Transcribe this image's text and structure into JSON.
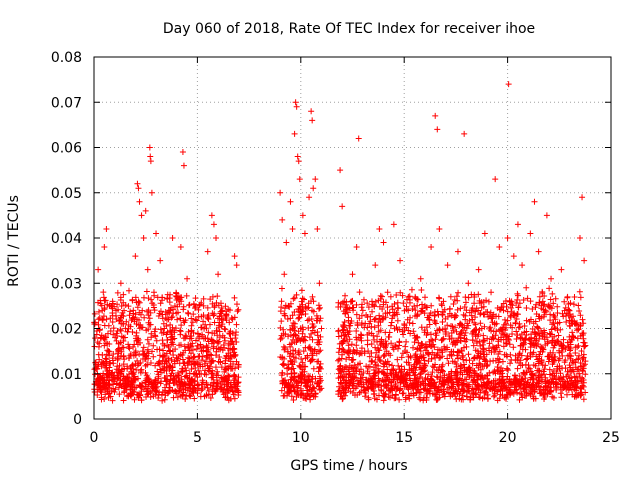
{
  "chart_data": {
    "type": "scatter",
    "title": "Day 060 of 2018, Rate Of TEC Index for receiver ihoe",
    "xlabel": "GPS time / hours",
    "ylabel": "ROTI / TECUs",
    "xlim": [
      0,
      25
    ],
    "ylim": [
      0,
      0.08
    ],
    "x_ticks": [
      "0",
      "5",
      "10",
      "15",
      "20",
      "25"
    ],
    "y_ticks": [
      "0",
      "0.01",
      "0.02",
      "0.03",
      "0.04",
      "0.05",
      "0.06",
      "0.07",
      "0.08"
    ],
    "grid": true,
    "marker": "+",
    "marker_color": "#ff0000",
    "series": [
      {
        "name": "ROTI",
        "points": [
          [
            0.1,
            0.012
          ],
          [
            0.2,
            0.033
          ],
          [
            0.3,
            0.008
          ],
          [
            0.4,
            0.022
          ],
          [
            0.5,
            0.038
          ],
          [
            0.6,
            0.042
          ],
          [
            0.7,
            0.015
          ],
          [
            0.9,
            0.026
          ],
          [
            1.1,
            0.011
          ],
          [
            1.3,
            0.03
          ],
          [
            1.5,
            0.018
          ],
          [
            1.7,
            0.009
          ],
          [
            1.9,
            0.024
          ],
          [
            2.0,
            0.036
          ],
          [
            2.1,
            0.052
          ],
          [
            2.15,
            0.051
          ],
          [
            2.2,
            0.048
          ],
          [
            2.3,
            0.045
          ],
          [
            2.4,
            0.04
          ],
          [
            2.5,
            0.046
          ],
          [
            2.6,
            0.033
          ],
          [
            2.7,
            0.06
          ],
          [
            2.72,
            0.058
          ],
          [
            2.75,
            0.057
          ],
          [
            2.8,
            0.05
          ],
          [
            2.9,
            0.028
          ],
          [
            3.0,
            0.041
          ],
          [
            3.2,
            0.035
          ],
          [
            3.4,
            0.02
          ],
          [
            3.6,
            0.013
          ],
          [
            3.8,
            0.04
          ],
          [
            4.0,
            0.027
          ],
          [
            4.2,
            0.038
          ],
          [
            4.3,
            0.059
          ],
          [
            4.35,
            0.056
          ],
          [
            4.5,
            0.031
          ],
          [
            4.7,
            0.016
          ],
          [
            4.9,
            0.022
          ],
          [
            5.1,
            0.01
          ],
          [
            5.3,
            0.025
          ],
          [
            5.5,
            0.037
          ],
          [
            5.7,
            0.045
          ],
          [
            5.8,
            0.043
          ],
          [
            5.9,
            0.04
          ],
          [
            6.0,
            0.032
          ],
          [
            6.2,
            0.024
          ],
          [
            6.4,
            0.014
          ],
          [
            6.6,
            0.019
          ],
          [
            6.8,
            0.036
          ],
          [
            6.9,
            0.034
          ],
          [
            7.0,
            0.012
          ],
          [
            9.0,
            0.05
          ],
          [
            9.1,
            0.044
          ],
          [
            9.2,
            0.032
          ],
          [
            9.3,
            0.039
          ],
          [
            9.4,
            0.025
          ],
          [
            9.5,
            0.048
          ],
          [
            9.6,
            0.042
          ],
          [
            9.7,
            0.063
          ],
          [
            9.75,
            0.07
          ],
          [
            9.8,
            0.069
          ],
          [
            9.85,
            0.058
          ],
          [
            9.9,
            0.057
          ],
          [
            9.95,
            0.053
          ],
          [
            10.1,
            0.045
          ],
          [
            10.2,
            0.041
          ],
          [
            10.4,
            0.049
          ],
          [
            10.5,
            0.068
          ],
          [
            10.55,
            0.066
          ],
          [
            10.6,
            0.051
          ],
          [
            10.7,
            0.053
          ],
          [
            10.8,
            0.042
          ],
          [
            10.9,
            0.03
          ],
          [
            11.0,
            0.02
          ],
          [
            11.9,
            0.055
          ],
          [
            12.0,
            0.047
          ],
          [
            12.1,
            0.026
          ],
          [
            12.3,
            0.015
          ],
          [
            12.5,
            0.032
          ],
          [
            12.7,
            0.038
          ],
          [
            12.8,
            0.062
          ],
          [
            13.0,
            0.024
          ],
          [
            13.3,
            0.019
          ],
          [
            13.6,
            0.034
          ],
          [
            13.8,
            0.042
          ],
          [
            14.0,
            0.039
          ],
          [
            14.2,
            0.028
          ],
          [
            14.5,
            0.043
          ],
          [
            14.8,
            0.035
          ],
          [
            15.0,
            0.021
          ],
          [
            15.2,
            0.027
          ],
          [
            15.5,
            0.017
          ],
          [
            15.8,
            0.031
          ],
          [
            16.0,
            0.025
          ],
          [
            16.3,
            0.038
          ],
          [
            16.5,
            0.067
          ],
          [
            16.6,
            0.064
          ],
          [
            16.7,
            0.042
          ],
          [
            16.9,
            0.026
          ],
          [
            17.1,
            0.034
          ],
          [
            17.3,
            0.019
          ],
          [
            17.6,
            0.037
          ],
          [
            17.9,
            0.063
          ],
          [
            18.1,
            0.03
          ],
          [
            18.3,
            0.022
          ],
          [
            18.6,
            0.033
          ],
          [
            18.9,
            0.041
          ],
          [
            19.2,
            0.028
          ],
          [
            19.4,
            0.053
          ],
          [
            19.6,
            0.038
          ],
          [
            19.8,
            0.024
          ],
          [
            20.0,
            0.04
          ],
          [
            20.05,
            0.074
          ],
          [
            20.3,
            0.036
          ],
          [
            20.5,
            0.043
          ],
          [
            20.7,
            0.034
          ],
          [
            20.9,
            0.029
          ],
          [
            21.1,
            0.041
          ],
          [
            21.3,
            0.048
          ],
          [
            21.5,
            0.037
          ],
          [
            21.7,
            0.026
          ],
          [
            21.9,
            0.045
          ],
          [
            22.1,
            0.031
          ],
          [
            22.3,
            0.02
          ],
          [
            22.6,
            0.033
          ],
          [
            22.9,
            0.027
          ],
          [
            23.2,
            0.018
          ],
          [
            23.5,
            0.04
          ],
          [
            23.6,
            0.049
          ],
          [
            23.7,
            0.035
          ]
        ]
      }
    ],
    "dense_band": {
      "segments_hours": [
        [
          0.0,
          7.0
        ],
        [
          9.0,
          11.0
        ],
        [
          11.8,
          23.8
        ]
      ],
      "y_range": [
        0.004,
        0.025
      ]
    }
  }
}
